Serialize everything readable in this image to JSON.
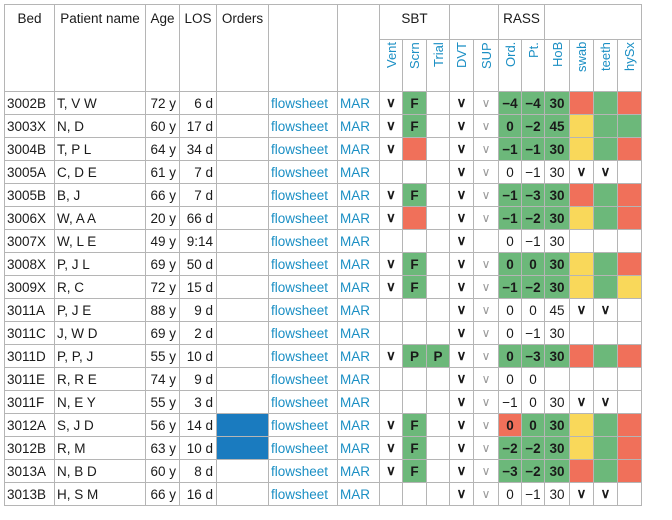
{
  "headers": {
    "bed": "Bed",
    "patient_name": "Patient name",
    "age": "Age",
    "los": "LOS",
    "orders": "Orders",
    "sbt": "SBT",
    "rass": "RASS",
    "sub": [
      "Vent",
      "Scrn",
      "Trial",
      "DVT",
      "SUP",
      "Ord.",
      "Pt.",
      "HoB",
      "swab",
      "teeth",
      "hySx"
    ]
  },
  "colors": {
    "green": "#6cb87a",
    "red": "#f0705a",
    "yellow": "#f9d85a",
    "blue": "#1a7bbf",
    "link": "#1b8fc4"
  },
  "rows": [
    {
      "bed": "3002B",
      "name": "T, V W",
      "age": "72 y",
      "los": "6 d",
      "orders": "",
      "flow": "flowsheet",
      "mar": "MAR",
      "vent": "∨",
      "scrn": "F",
      "trial": "",
      "dvt": "∨",
      "sup": "∨",
      "ord": "−4",
      "pt": "−4",
      "hob": "30",
      "swab": "red",
      "teeth": "green",
      "hysx": "red"
    },
    {
      "bed": "3003X",
      "name": "N, D",
      "age": "60 y",
      "los": "17 d",
      "orders": "",
      "flow": "flowsheet",
      "mar": "MAR",
      "vent": "∨",
      "scrn": "F",
      "trial": "",
      "dvt": "∨",
      "sup": "∨",
      "ord": "0",
      "pt": "−2",
      "hob": "45",
      "swab": "yellow",
      "teeth": "green",
      "hysx": "green"
    },
    {
      "bed": "3004B",
      "name": "T, P L",
      "age": "64 y",
      "los": "34 d",
      "orders": "",
      "flow": "flowsheet",
      "mar": "MAR",
      "vent": "∨",
      "scrn": "red",
      "trial": "",
      "dvt": "∨",
      "sup": "∨",
      "ord": "−1",
      "pt": "−1",
      "hob": "30",
      "swab": "yellow",
      "teeth": "green",
      "hysx": "red"
    },
    {
      "bed": "3005A",
      "name": "C, D E",
      "age": "61 y",
      "los": "7 d",
      "orders": "",
      "flow": "flowsheet",
      "mar": "MAR",
      "vent": "",
      "scrn": "",
      "trial": "",
      "dvt": "∨",
      "sup": "∨",
      "ord": "0",
      "pt": "−1",
      "hob": "30",
      "swab": "∨",
      "teeth": "∨",
      "hysx": ""
    },
    {
      "bed": "3005B",
      "name": "B, J",
      "age": "66 y",
      "los": "7 d",
      "orders": "",
      "flow": "flowsheet",
      "mar": "MAR",
      "vent": "∨",
      "scrn": "F",
      "trial": "",
      "dvt": "∨",
      "sup": "∨",
      "ord": "−1",
      "pt": "−3",
      "hob": "30",
      "swab": "red",
      "teeth": "green",
      "hysx": "red"
    },
    {
      "bed": "3006X",
      "name": "W, A A",
      "age": "20 y",
      "los": "66 d",
      "orders": "",
      "flow": "flowsheet",
      "mar": "MAR",
      "vent": "∨",
      "scrn": "red",
      "trial": "",
      "dvt": "∨",
      "sup": "∨",
      "ord": "−1",
      "pt": "−2",
      "hob": "30",
      "swab": "yellow",
      "teeth": "green",
      "hysx": "red"
    },
    {
      "bed": "3007X",
      "name": "W, L E",
      "age": "49 y",
      "los": "9:14",
      "orders": "",
      "flow": "flowsheet",
      "mar": "MAR",
      "vent": "",
      "scrn": "",
      "trial": "",
      "dvt": "∨",
      "sup": "",
      "ord": "0",
      "pt": "−1",
      "hob": "30",
      "swab": "",
      "teeth": "",
      "hysx": ""
    },
    {
      "bed": "3008X",
      "name": "P, J L",
      "age": "69 y",
      "los": "50 d",
      "orders": "",
      "flow": "flowsheet",
      "mar": "MAR",
      "vent": "∨",
      "scrn": "F",
      "trial": "",
      "dvt": "∨",
      "sup": "∨",
      "ord": "0",
      "pt": "0",
      "hob": "30",
      "swab": "yellow",
      "teeth": "green",
      "hysx": "red"
    },
    {
      "bed": "3009X",
      "name": "R, C",
      "age": "72 y",
      "los": "15 d",
      "orders": "",
      "flow": "flowsheet",
      "mar": "MAR",
      "vent": "∨",
      "scrn": "F",
      "trial": "",
      "dvt": "∨",
      "sup": "∨",
      "ord": "−1",
      "pt": "−2",
      "hob": "30",
      "swab": "yellow",
      "teeth": "green",
      "hysx": "yellow"
    },
    {
      "bed": "3011A",
      "name": "P, J E",
      "age": "88 y",
      "los": "9 d",
      "orders": "",
      "flow": "flowsheet",
      "mar": "MAR",
      "vent": "",
      "scrn": "",
      "trial": "",
      "dvt": "∨",
      "sup": "∨",
      "ord": "0",
      "pt": "0",
      "hob": "45",
      "swab": "∨",
      "teeth": "∨",
      "hysx": ""
    },
    {
      "bed": "3011C",
      "name": "J, W D",
      "age": "69 y",
      "los": "2 d",
      "orders": "",
      "flow": "flowsheet",
      "mar": "MAR",
      "vent": "",
      "scrn": "",
      "trial": "",
      "dvt": "∨",
      "sup": "∨",
      "ord": "0",
      "pt": "−1",
      "hob": "30",
      "swab": "",
      "teeth": "",
      "hysx": ""
    },
    {
      "bed": "3011D",
      "name": "P, P, J",
      "age": "55 y",
      "los": "10 d",
      "orders": "",
      "flow": "flowsheet",
      "mar": "MAR",
      "vent": "∨",
      "scrn": "P",
      "trial": "P",
      "dvt": "∨",
      "sup": "∨",
      "ord": "0",
      "pt": "−3",
      "hob": "30",
      "swab": "red",
      "teeth": "green",
      "hysx": "red"
    },
    {
      "bed": "3011E",
      "name": "R, R E",
      "age": "74 y",
      "los": "9 d",
      "orders": "",
      "flow": "flowsheet",
      "mar": "MAR",
      "vent": "",
      "scrn": "",
      "trial": "",
      "dvt": "∨",
      "sup": "∨",
      "ord": "0",
      "pt": "0",
      "hob": "",
      "swab": "",
      "teeth": "",
      "hysx": ""
    },
    {
      "bed": "3011F",
      "name": "N, E Y",
      "age": "55 y",
      "los": "3 d",
      "orders": "",
      "flow": "flowsheet",
      "mar": "MAR",
      "vent": "",
      "scrn": "",
      "trial": "",
      "dvt": "∨",
      "sup": "∨",
      "ord": "−1",
      "pt": "0",
      "hob": "30",
      "swab": "∨",
      "teeth": "∨",
      "hysx": ""
    },
    {
      "bed": "3012A",
      "name": "S, J D",
      "age": "56 y",
      "los": "14 d",
      "orders": "blue",
      "flow": "flowsheet",
      "mar": "MAR",
      "vent": "∨",
      "scrn": "F",
      "trial": "",
      "dvt": "∨",
      "sup": "∨",
      "ord": "0",
      "pt": "0",
      "hob": "30",
      "swab": "yellow",
      "teeth": "green",
      "hysx": "red"
    },
    {
      "bed": "3012B",
      "name": "R, M",
      "age": "63 y",
      "los": "10 d",
      "orders": "blue",
      "flow": "flowsheet",
      "mar": "MAR",
      "vent": "∨",
      "scrn": "F",
      "trial": "",
      "dvt": "∨",
      "sup": "∨",
      "ord": "−2",
      "pt": "−2",
      "hob": "30",
      "swab": "yellow",
      "teeth": "green",
      "hysx": "red"
    },
    {
      "bed": "3013A",
      "name": "N, B D",
      "age": "60 y",
      "los": "8 d",
      "orders": "",
      "flow": "flowsheet",
      "mar": "MAR",
      "vent": "∨",
      "scrn": "F",
      "trial": "",
      "dvt": "∨",
      "sup": "∨",
      "ord": "−3",
      "pt": "−2",
      "hob": "30",
      "swab": "red",
      "teeth": "green",
      "hysx": "red"
    },
    {
      "bed": "3013B",
      "name": "H, S M",
      "age": "66 y",
      "los": "16 d",
      "orders": "",
      "flow": "flowsheet",
      "mar": "MAR",
      "vent": "",
      "scrn": "",
      "trial": "",
      "dvt": "∨",
      "sup": "∨",
      "ord": "0",
      "pt": "−1",
      "hob": "30",
      "swab": "∨",
      "teeth": "∨",
      "hysx": ""
    }
  ]
}
